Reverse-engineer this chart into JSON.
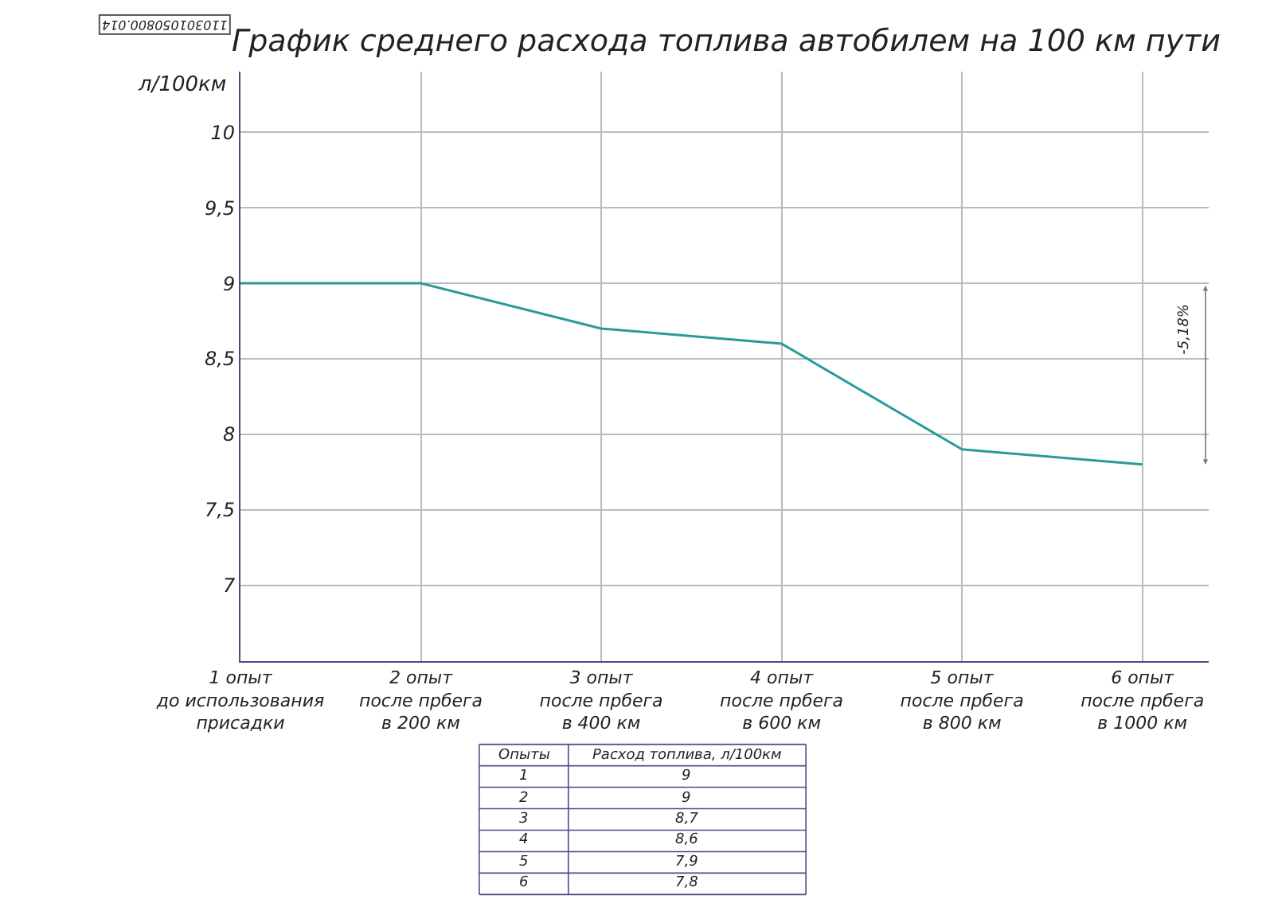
{
  "chart_data": {
    "type": "line",
    "title": "График среднего расхода топлива автобилем на 100 км пути",
    "ylabel": "л/100км",
    "categories": [
      "1 опыт\nдо использования\nприсадки",
      "2 опыт\nпосле прбега\nв 200 км",
      "3 опыт\nпосле прбега\nв 400 км",
      "4 опыт\nпосле прбега\nв 600 км",
      "5 опыт\nпосле прбега\nв 800 км",
      "6 опыт\nпосле прбега\nв 1000 км"
    ],
    "series": [
      {
        "color": "#2a9a9a",
        "values": [
          9,
          9,
          8.7,
          8.6,
          7.9,
          7.8
        ]
      }
    ],
    "ylim": [
      6.5,
      10.4
    ],
    "yticks": [
      7,
      {
        "value": 7.5,
        "label": "7,5"
      },
      8,
      {
        "value": 8.5,
        "label": "8,5"
      },
      9,
      {
        "value": 9.5,
        "label": "9,5"
      },
      10
    ],
    "grid": true,
    "marker": "none",
    "line_style": "solid",
    "annotations": [
      "-5,18%",
      "110301050800.014",
      "Опыты",
      "Расход топлива, л/100км",
      "1",
      "9",
      "2",
      "9",
      "3",
      "8,7",
      "4",
      "8,6",
      "5",
      "7,9",
      "6",
      "7,8"
    ]
  }
}
